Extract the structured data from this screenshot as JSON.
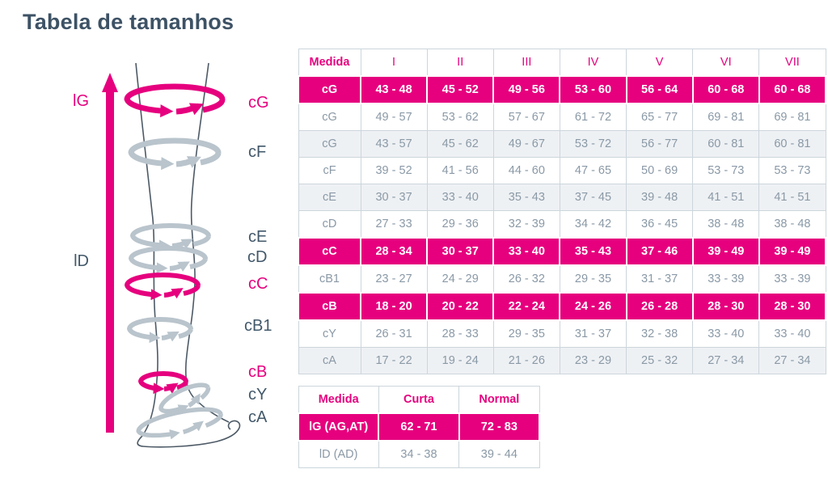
{
  "page": {
    "title": "Tabela de tamanhos"
  },
  "colors": {
    "accent_pink": "#e6007e",
    "title_text": "#3d5265",
    "cell_text": "#8a99a6",
    "shaded_row": "#eef1f4",
    "table_border": "#ccd6dc",
    "band_gray": "#b9c4cc"
  },
  "diagram": {
    "labels": {
      "lG": "lG",
      "lD": "lD",
      "cG": "cG",
      "cF": "cF",
      "cE": "cE",
      "cD": "cD",
      "cC": "cC",
      "cB1": "cB1",
      "cB": "cB",
      "cY": "cY",
      "cA": "cA"
    },
    "highlighted_labels": [
      "lG",
      "cG",
      "cC",
      "cB"
    ]
  },
  "size_table": {
    "headers": [
      "Medida",
      "I",
      "II",
      "III",
      "IV",
      "V",
      "VI",
      "VII"
    ],
    "rows": [
      {
        "measure": "cG",
        "highlight": true,
        "shade": false,
        "values": [
          "43 - 48",
          "45 - 52",
          "49 - 56",
          "53 - 60",
          "56 - 64",
          "60 - 68",
          "60 - 68"
        ]
      },
      {
        "measure": "cG",
        "highlight": false,
        "shade": false,
        "values": [
          "49 - 57",
          "53 - 62",
          "57 - 67",
          "61 - 72",
          "65 - 77",
          "69 - 81",
          "69 - 81"
        ]
      },
      {
        "measure": "cG",
        "highlight": false,
        "shade": true,
        "values": [
          "43 - 57",
          "45 - 62",
          "49 - 67",
          "53 - 72",
          "56 - 77",
          "60 - 81",
          "60 - 81"
        ]
      },
      {
        "measure": "cF",
        "highlight": false,
        "shade": false,
        "values": [
          "39 - 52",
          "41 - 56",
          "44 - 60",
          "47 - 65",
          "50 - 69",
          "53 - 73",
          "53 - 73"
        ]
      },
      {
        "measure": "cE",
        "highlight": false,
        "shade": true,
        "values": [
          "30 - 37",
          "33 - 40",
          "35 - 43",
          "37 - 45",
          "39 - 48",
          "41 - 51",
          "41 - 51"
        ]
      },
      {
        "measure": "cD",
        "highlight": false,
        "shade": false,
        "values": [
          "27 - 33",
          "29 - 36",
          "32 - 39",
          "34 - 42",
          "36 - 45",
          "38 - 48",
          "38 - 48"
        ]
      },
      {
        "measure": "cC",
        "highlight": true,
        "shade": false,
        "values": [
          "28 - 34",
          "30 - 37",
          "33 - 40",
          "35 - 43",
          "37 - 46",
          "39 - 49",
          "39 - 49"
        ]
      },
      {
        "measure": "cB1",
        "highlight": false,
        "shade": false,
        "values": [
          "23 - 27",
          "24 - 29",
          "26 - 32",
          "29 - 35",
          "31 - 37",
          "33 - 39",
          "33 - 39"
        ]
      },
      {
        "measure": "cB",
        "highlight": true,
        "shade": false,
        "values": [
          "18 - 20",
          "20 - 22",
          "22 - 24",
          "24 - 26",
          "26 - 28",
          "28 - 30",
          "28 - 30"
        ]
      },
      {
        "measure": "cY",
        "highlight": false,
        "shade": false,
        "values": [
          "26 - 31",
          "28 - 33",
          "29 - 35",
          "31 - 37",
          "32 - 38",
          "33 - 40",
          "33 - 40"
        ]
      },
      {
        "measure": "cA",
        "highlight": false,
        "shade": true,
        "values": [
          "17 - 22",
          "19 - 24",
          "21 - 26",
          "23 - 29",
          "25 - 32",
          "27 - 34",
          "27 - 34"
        ]
      }
    ]
  },
  "length_table": {
    "headers": [
      "Medida",
      "Curta",
      "Normal"
    ],
    "rows": [
      {
        "measure": "lG (AG,AT)",
        "highlight": true,
        "shade": false,
        "values": [
          "62 - 71",
          "72 - 83"
        ]
      },
      {
        "measure": "lD (AD)",
        "highlight": false,
        "shade": false,
        "values": [
          "34 - 38",
          "39 - 44"
        ]
      }
    ]
  }
}
